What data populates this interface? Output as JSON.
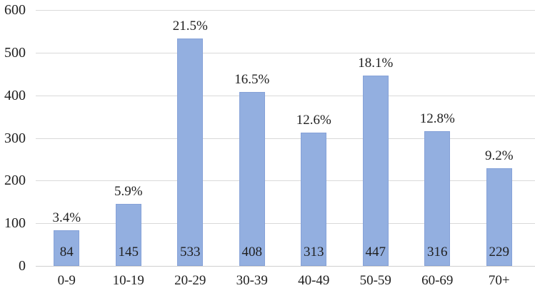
{
  "chart_data": {
    "type": "bar",
    "title": "",
    "xlabel": "",
    "ylabel": "",
    "categories": [
      "0-9",
      "10-19",
      "20-29",
      "30-39",
      "40-49",
      "50-59",
      "60-69",
      "70+"
    ],
    "values": [
      84,
      145,
      533,
      408,
      313,
      447,
      316,
      229
    ],
    "percent_labels": [
      "3.4%",
      "5.9%",
      "21.5%",
      "16.5%",
      "12.6%",
      "18.1%",
      "12.8%",
      "9.2%"
    ],
    "yticks": [
      0,
      100,
      200,
      300,
      400,
      500,
      600
    ],
    "ylim": [
      0,
      600
    ],
    "grid": true,
    "legend": false,
    "colors": {
      "bar_fill": "#93afe0",
      "bar_border": "#86a2d8",
      "gridline": "#d9d9d9",
      "text": "#1f1f1f",
      "background": "#ffffff"
    }
  }
}
